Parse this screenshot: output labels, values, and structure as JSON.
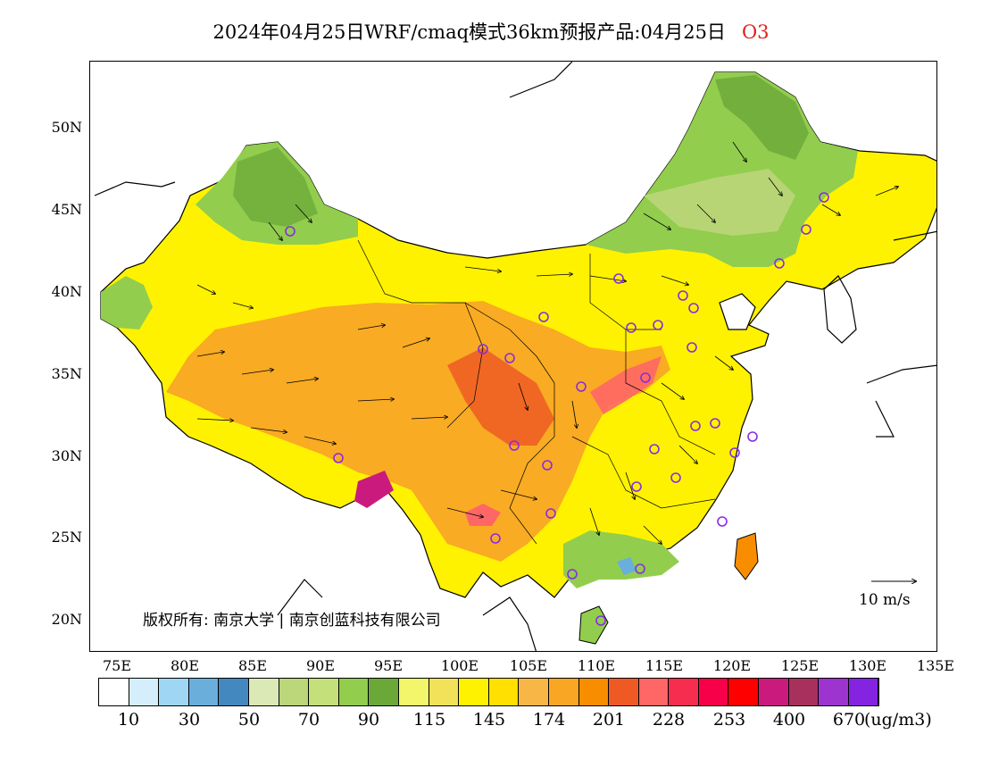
{
  "title": {
    "main": "2024年04月25日WRF/cmaq模式36km预报产品:04月25日",
    "species": "O3"
  },
  "axes": {
    "lat_labels": [
      "50N",
      "45N",
      "40N",
      "35N",
      "30N",
      "25N",
      "20N"
    ],
    "lon_labels": [
      "75E",
      "80E",
      "85E",
      "90E",
      "95E",
      "100E",
      "105E",
      "110E",
      "115E",
      "120E",
      "125E",
      "130E",
      "135E"
    ]
  },
  "copyright": {
    "label": "版权所有:",
    "org1": "南京大学",
    "org2": "南京创蓝科技有限公司"
  },
  "wind_reference": {
    "label": "10 m/s",
    "speed": 10
  },
  "colorbar": {
    "colors": [
      "#ffffff",
      "#d4eefb",
      "#9fd6f4",
      "#6aaedc",
      "#4389c0",
      "#dbe9b7",
      "#bcd67a",
      "#c3e07a",
      "#92cd4e",
      "#6aa838",
      "#f3f56b",
      "#f2e25a",
      "#fff200",
      "#ffe000",
      "#f8b646",
      "#f9a625",
      "#f98d00",
      "#ef5a24",
      "#ff6666",
      "#f62d4f",
      "#f80049",
      "#ff0000",
      "#cb1a7d",
      "#a7315c",
      "#9d34d0",
      "#8424e0"
    ],
    "labels": [
      "10",
      "30",
      "50",
      "70",
      "90",
      "115",
      "145",
      "174",
      "201",
      "228",
      "253",
      "400",
      "670"
    ],
    "unit": "(ug/m3)"
  }
}
